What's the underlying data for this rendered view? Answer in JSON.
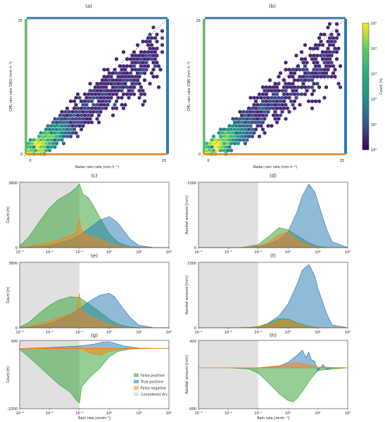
{
  "chart_data": [
    {
      "type": "heatmap",
      "panel": "(a)",
      "xlabel": "Radar rain rate (mm h⁻¹)",
      "ylabel": "CML rain rate GRO (mm h⁻¹)",
      "xlim": [
        0,
        25
      ],
      "ylim": [
        0,
        25
      ],
      "xticks": [
        "0",
        "25"
      ],
      "yticks": [
        "0",
        "25"
      ],
      "grid": false,
      "reference_line": "1:1 dashed diagonal"
    },
    {
      "type": "heatmap",
      "panel": "(b)",
      "xlabel": "Radar rain rate (mm h⁻¹)",
      "ylabel": "CML rain rate CNN (mm h⁻¹)",
      "xlim": [
        0,
        25
      ],
      "ylim": [
        0,
        25
      ],
      "xticks": [
        "0",
        "25"
      ],
      "yticks": [
        "0",
        "25"
      ],
      "grid": false,
      "reference_line": "1:1 dashed diagonal"
    },
    {
      "type": "area",
      "panel": "(c)",
      "ylabel": "Count [h]",
      "xscale": "log",
      "xlim": [
        0.001,
        100
      ],
      "ylim": [
        0,
        3800
      ],
      "yticks": [
        "0",
        "3800"
      ],
      "dry_threshold": 0.1,
      "series": [
        {
          "name": "False positive",
          "color": "#2ca02c",
          "x": [
            0.001,
            0.002,
            0.005,
            0.01,
            0.02,
            0.05,
            0.08,
            0.1,
            0.13,
            0.2,
            0.3,
            0.5,
            1,
            2,
            5,
            10,
            30,
            100
          ],
          "values": [
            100,
            600,
            1600,
            2300,
            2800,
            3200,
            3500,
            3700,
            3100,
            2900,
            2400,
            1700,
            800,
            300,
            60,
            15,
            2,
            0
          ]
        },
        {
          "name": "True positive",
          "color": "#1f77b4",
          "x": [
            0.001,
            0.002,
            0.005,
            0.01,
            0.02,
            0.05,
            0.1,
            0.2,
            0.5,
            1,
            1.5,
            2,
            5,
            10,
            30,
            100
          ],
          "values": [
            0,
            20,
            60,
            120,
            250,
            450,
            700,
            1100,
            1600,
            1800,
            1600,
            1400,
            500,
            120,
            10,
            0
          ]
        },
        {
          "name": "False negative",
          "color": "#ff7f0e",
          "x": [
            0.001,
            0.002,
            0.005,
            0.01,
            0.02,
            0.05,
            0.08,
            0.1,
            0.12,
            0.2,
            0.5,
            1,
            2,
            5,
            10,
            100
          ],
          "values": [
            0,
            80,
            200,
            300,
            450,
            700,
            900,
            1700,
            950,
            700,
            500,
            250,
            100,
            20,
            2,
            0
          ]
        }
      ]
    },
    {
      "type": "area",
      "panel": "(d)",
      "ylabel": "Rainfall amount [mm]",
      "xscale": "log",
      "xlim": [
        0.001,
        100
      ],
      "ylim": [
        0,
        3300
      ],
      "yticks": [
        "0",
        "3300"
      ],
      "dry_threshold": 0.1,
      "series": [
        {
          "name": "False positive",
          "color": "#2ca02c",
          "x": [
            0.001,
            0.01,
            0.03,
            0.1,
            0.2,
            0.5,
            1,
            2,
            5,
            10,
            20,
            100
          ],
          "values": [
            0,
            0,
            10,
            150,
            500,
            1000,
            900,
            600,
            250,
            60,
            10,
            0
          ]
        },
        {
          "name": "True positive",
          "color": "#1f77b4",
          "x": [
            0.001,
            0.01,
            0.05,
            0.1,
            0.2,
            0.5,
            1,
            2,
            3,
            5,
            8,
            10,
            20,
            30,
            100
          ],
          "values": [
            0,
            0,
            20,
            60,
            150,
            400,
            800,
            1800,
            2600,
            3200,
            2800,
            2300,
            900,
            300,
            0
          ]
        },
        {
          "name": "False negative",
          "color": "#ff7f0e",
          "x": [
            0.001,
            0.01,
            0.05,
            0.1,
            0.2,
            0.5,
            1,
            2,
            5,
            10,
            100
          ],
          "values": [
            0,
            0,
            20,
            80,
            250,
            650,
            800,
            400,
            100,
            20,
            0
          ]
        }
      ]
    },
    {
      "type": "area",
      "panel": "(e)",
      "ylabel": "Count [h]",
      "xscale": "log",
      "xlim": [
        0.001,
        100
      ],
      "ylim": [
        0,
        3800
      ],
      "yticks": [
        "0",
        "3800"
      ],
      "dry_threshold": 0.1,
      "series": [
        {
          "name": "False positive",
          "color": "#2ca02c",
          "x": [
            0.001,
            0.002,
            0.005,
            0.01,
            0.02,
            0.05,
            0.1,
            0.2,
            0.5,
            1,
            2,
            5,
            10,
            100
          ],
          "values": [
            50,
            300,
            900,
            1300,
            1600,
            1800,
            1750,
            1400,
            900,
            500,
            200,
            40,
            10,
            0
          ]
        },
        {
          "name": "True positive",
          "color": "#1f77b4",
          "x": [
            0.001,
            0.002,
            0.005,
            0.01,
            0.02,
            0.05,
            0.1,
            0.2,
            0.5,
            1,
            1.5,
            2,
            5,
            10,
            30,
            100
          ],
          "values": [
            0,
            40,
            120,
            250,
            450,
            800,
            1100,
            1500,
            1900,
            2000,
            1800,
            1500,
            600,
            150,
            10,
            0
          ]
        },
        {
          "name": "False negative",
          "color": "#ff7f0e",
          "x": [
            0.001,
            0.002,
            0.005,
            0.01,
            0.02,
            0.05,
            0.08,
            0.1,
            0.12,
            0.2,
            0.5,
            1,
            2,
            5,
            10,
            100
          ],
          "values": [
            0,
            100,
            250,
            400,
            600,
            800,
            1000,
            2000,
            1000,
            700,
            400,
            200,
            80,
            10,
            0,
            0
          ]
        }
      ]
    },
    {
      "type": "area",
      "panel": "(f)",
      "ylabel": "Rainfall amount [mm]",
      "xscale": "log",
      "xlim": [
        0.001,
        100
      ],
      "ylim": [
        0,
        3300
      ],
      "yticks": [
        "0",
        "3300"
      ],
      "dry_threshold": 0.1,
      "series": [
        {
          "name": "True positive",
          "color": "#1f77b4",
          "x": [
            0.001,
            0.01,
            0.05,
            0.1,
            0.2,
            0.5,
            1,
            2,
            3,
            5,
            8,
            10,
            20,
            30,
            100
          ],
          "values": [
            0,
            0,
            20,
            60,
            200,
            600,
            1200,
            2200,
            2900,
            3200,
            2600,
            2000,
            700,
            150,
            0
          ]
        },
        {
          "name": "False positive",
          "color": "#2ca02c",
          "x": [
            0.001,
            0.01,
            0.05,
            0.1,
            0.2,
            0.5,
            1,
            2,
            5,
            10,
            100
          ],
          "values": [
            0,
            0,
            10,
            60,
            200,
            450,
            450,
            250,
            80,
            10,
            0
          ]
        },
        {
          "name": "False negative",
          "color": "#ff7f0e",
          "x": [
            0.001,
            0.01,
            0.05,
            0.1,
            0.2,
            0.5,
            1,
            2,
            5,
            10,
            100
          ],
          "values": [
            0,
            0,
            10,
            50,
            150,
            350,
            400,
            200,
            50,
            10,
            0
          ]
        }
      ]
    },
    {
      "type": "area",
      "panel": "(g)",
      "ylabel": "Count [h]",
      "xlabel": "Rain rate [mmh⁻¹]",
      "xscale": "log",
      "xlim": [
        0.001,
        100
      ],
      "ylim": [
        -2200,
        300
      ],
      "yticks": [
        "-2200",
        "300"
      ],
      "dry_threshold": 0.1,
      "series": [
        {
          "name": "False positive",
          "color": "#2ca02c",
          "x": [
            0.001,
            0.002,
            0.005,
            0.01,
            0.02,
            0.05,
            0.08,
            0.1,
            0.12,
            0.2,
            0.5,
            1,
            2,
            5,
            10,
            100
          ],
          "values": [
            -30,
            -300,
            -700,
            -1000,
            -1300,
            -1600,
            -1900,
            -2000,
            -1400,
            -1100,
            -700,
            -300,
            -100,
            -20,
            0,
            0
          ]
        },
        {
          "name": "True positive",
          "color": "#1f77b4",
          "x": [
            0.001,
            0.01,
            0.05,
            0.1,
            0.3,
            0.6,
            1,
            1.5,
            3,
            10,
            100
          ],
          "values": [
            0,
            40,
            80,
            100,
            160,
            240,
            250,
            200,
            100,
            20,
            0
          ]
        },
        {
          "name": "False negative",
          "color": "#ff7f0e",
          "x": [
            0.001,
            0.01,
            0.05,
            0.1,
            0.2,
            0.5,
            1,
            3,
            10,
            100
          ],
          "values": [
            0,
            30,
            50,
            80,
            -150,
            -250,
            -100,
            -30,
            0,
            0
          ]
        }
      ]
    },
    {
      "type": "area",
      "panel": "(h)",
      "ylabel": "Rainfall amount [mm]",
      "xlabel": "Rain rate [mmh⁻¹]",
      "xscale": "log",
      "xlim": [
        0.001,
        100
      ],
      "ylim": [
        -600,
        400
      ],
      "yticks": [
        "-600",
        "400"
      ],
      "dry_threshold": 0.1,
      "series": [
        {
          "name": "False positive",
          "color": "#2ca02c",
          "x": [
            0.001,
            0.01,
            0.05,
            0.1,
            0.2,
            0.5,
            1,
            1.5,
            2,
            3,
            5,
            10,
            100
          ],
          "values": [
            0,
            0,
            -20,
            -80,
            -200,
            -380,
            -480,
            -500,
            -450,
            -350,
            -200,
            -40,
            0
          ]
        },
        {
          "name": "True positive",
          "color": "#1f77b4",
          "x": [
            0.001,
            0.1,
            0.5,
            1,
            2,
            3,
            4,
            5,
            6,
            8,
            10,
            15,
            20,
            30
          ],
          "values": [
            0,
            0,
            20,
            80,
            180,
            260,
            150,
            230,
            120,
            90,
            -50,
            50,
            -20,
            0
          ]
        },
        {
          "name": "False negative",
          "color": "#ff7f0e",
          "x": [
            0.001,
            0.1,
            0.5,
            1,
            2,
            5,
            10,
            100
          ],
          "values": [
            0,
            0,
            30,
            60,
            80,
            40,
            10,
            0
          ]
        }
      ]
    }
  ],
  "legend": {
    "panel": "(g)",
    "placement": "lower-right",
    "items": [
      {
        "label": "False positive",
        "color": "#2ca02c"
      },
      {
        "label": "True positive",
        "color": "#1f77b4"
      },
      {
        "label": "False negative",
        "color": "#ff7f0e"
      },
      {
        "label": "Considered dry",
        "color": "#e0e0e0"
      }
    ]
  },
  "colorbar": {
    "label": "Count (h)",
    "scale": "log",
    "ticks": [
      "10⁰",
      "10¹",
      "10²",
      "10³",
      "10⁴",
      "10⁵"
    ],
    "colormap": "viridis"
  },
  "log_x_ticks": [
    "10⁻³",
    "10⁻²",
    "10⁻¹",
    "10⁰",
    "10¹",
    "10²"
  ]
}
